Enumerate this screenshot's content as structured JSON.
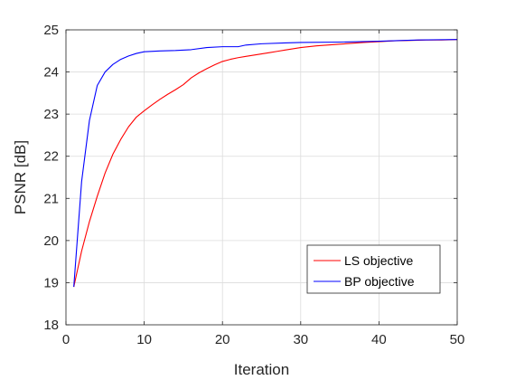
{
  "chart_data": {
    "type": "line",
    "title": "",
    "xlabel": "Iteration",
    "ylabel": "PSNR [dB]",
    "xlim": [
      0,
      50
    ],
    "ylim": [
      18,
      25
    ],
    "xticks": [
      0,
      10,
      20,
      30,
      40,
      50
    ],
    "yticks": [
      18,
      19,
      20,
      21,
      22,
      23,
      24,
      25
    ],
    "grid": true,
    "legend_position": "bottom-right",
    "series": [
      {
        "name": "LS objective",
        "color": "#ff0000",
        "x": [
          1,
          2,
          3,
          4,
          5,
          6,
          7,
          8,
          9,
          10,
          11,
          12,
          13,
          14,
          15,
          16,
          17,
          18,
          19,
          20,
          21,
          22,
          23,
          24,
          25,
          26,
          27,
          28,
          29,
          30,
          32,
          35,
          38,
          40,
          42,
          44,
          46,
          48,
          50
        ],
        "y": [
          18.9,
          19.75,
          20.45,
          21.05,
          21.6,
          22.05,
          22.4,
          22.7,
          22.93,
          23.08,
          23.22,
          23.35,
          23.47,
          23.58,
          23.7,
          23.86,
          23.98,
          24.08,
          24.17,
          24.25,
          24.3,
          24.34,
          24.37,
          24.4,
          24.43,
          24.46,
          24.49,
          24.52,
          24.55,
          24.58,
          24.62,
          24.66,
          24.7,
          24.72,
          24.74,
          24.75,
          24.76,
          24.76,
          24.77
        ]
      },
      {
        "name": "BP objective",
        "color": "#0000ff",
        "x": [
          1,
          2,
          3,
          4,
          5,
          6,
          7,
          8,
          9,
          10,
          12,
          14,
          16,
          18,
          20,
          22,
          23,
          25,
          28,
          30,
          35,
          40,
          45,
          50
        ],
        "y": [
          18.9,
          21.4,
          22.85,
          23.68,
          24.0,
          24.18,
          24.3,
          24.38,
          24.44,
          24.48,
          24.5,
          24.51,
          24.53,
          24.58,
          24.6,
          24.6,
          24.64,
          24.67,
          24.69,
          24.7,
          24.71,
          24.73,
          24.76,
          24.77
        ]
      }
    ]
  }
}
